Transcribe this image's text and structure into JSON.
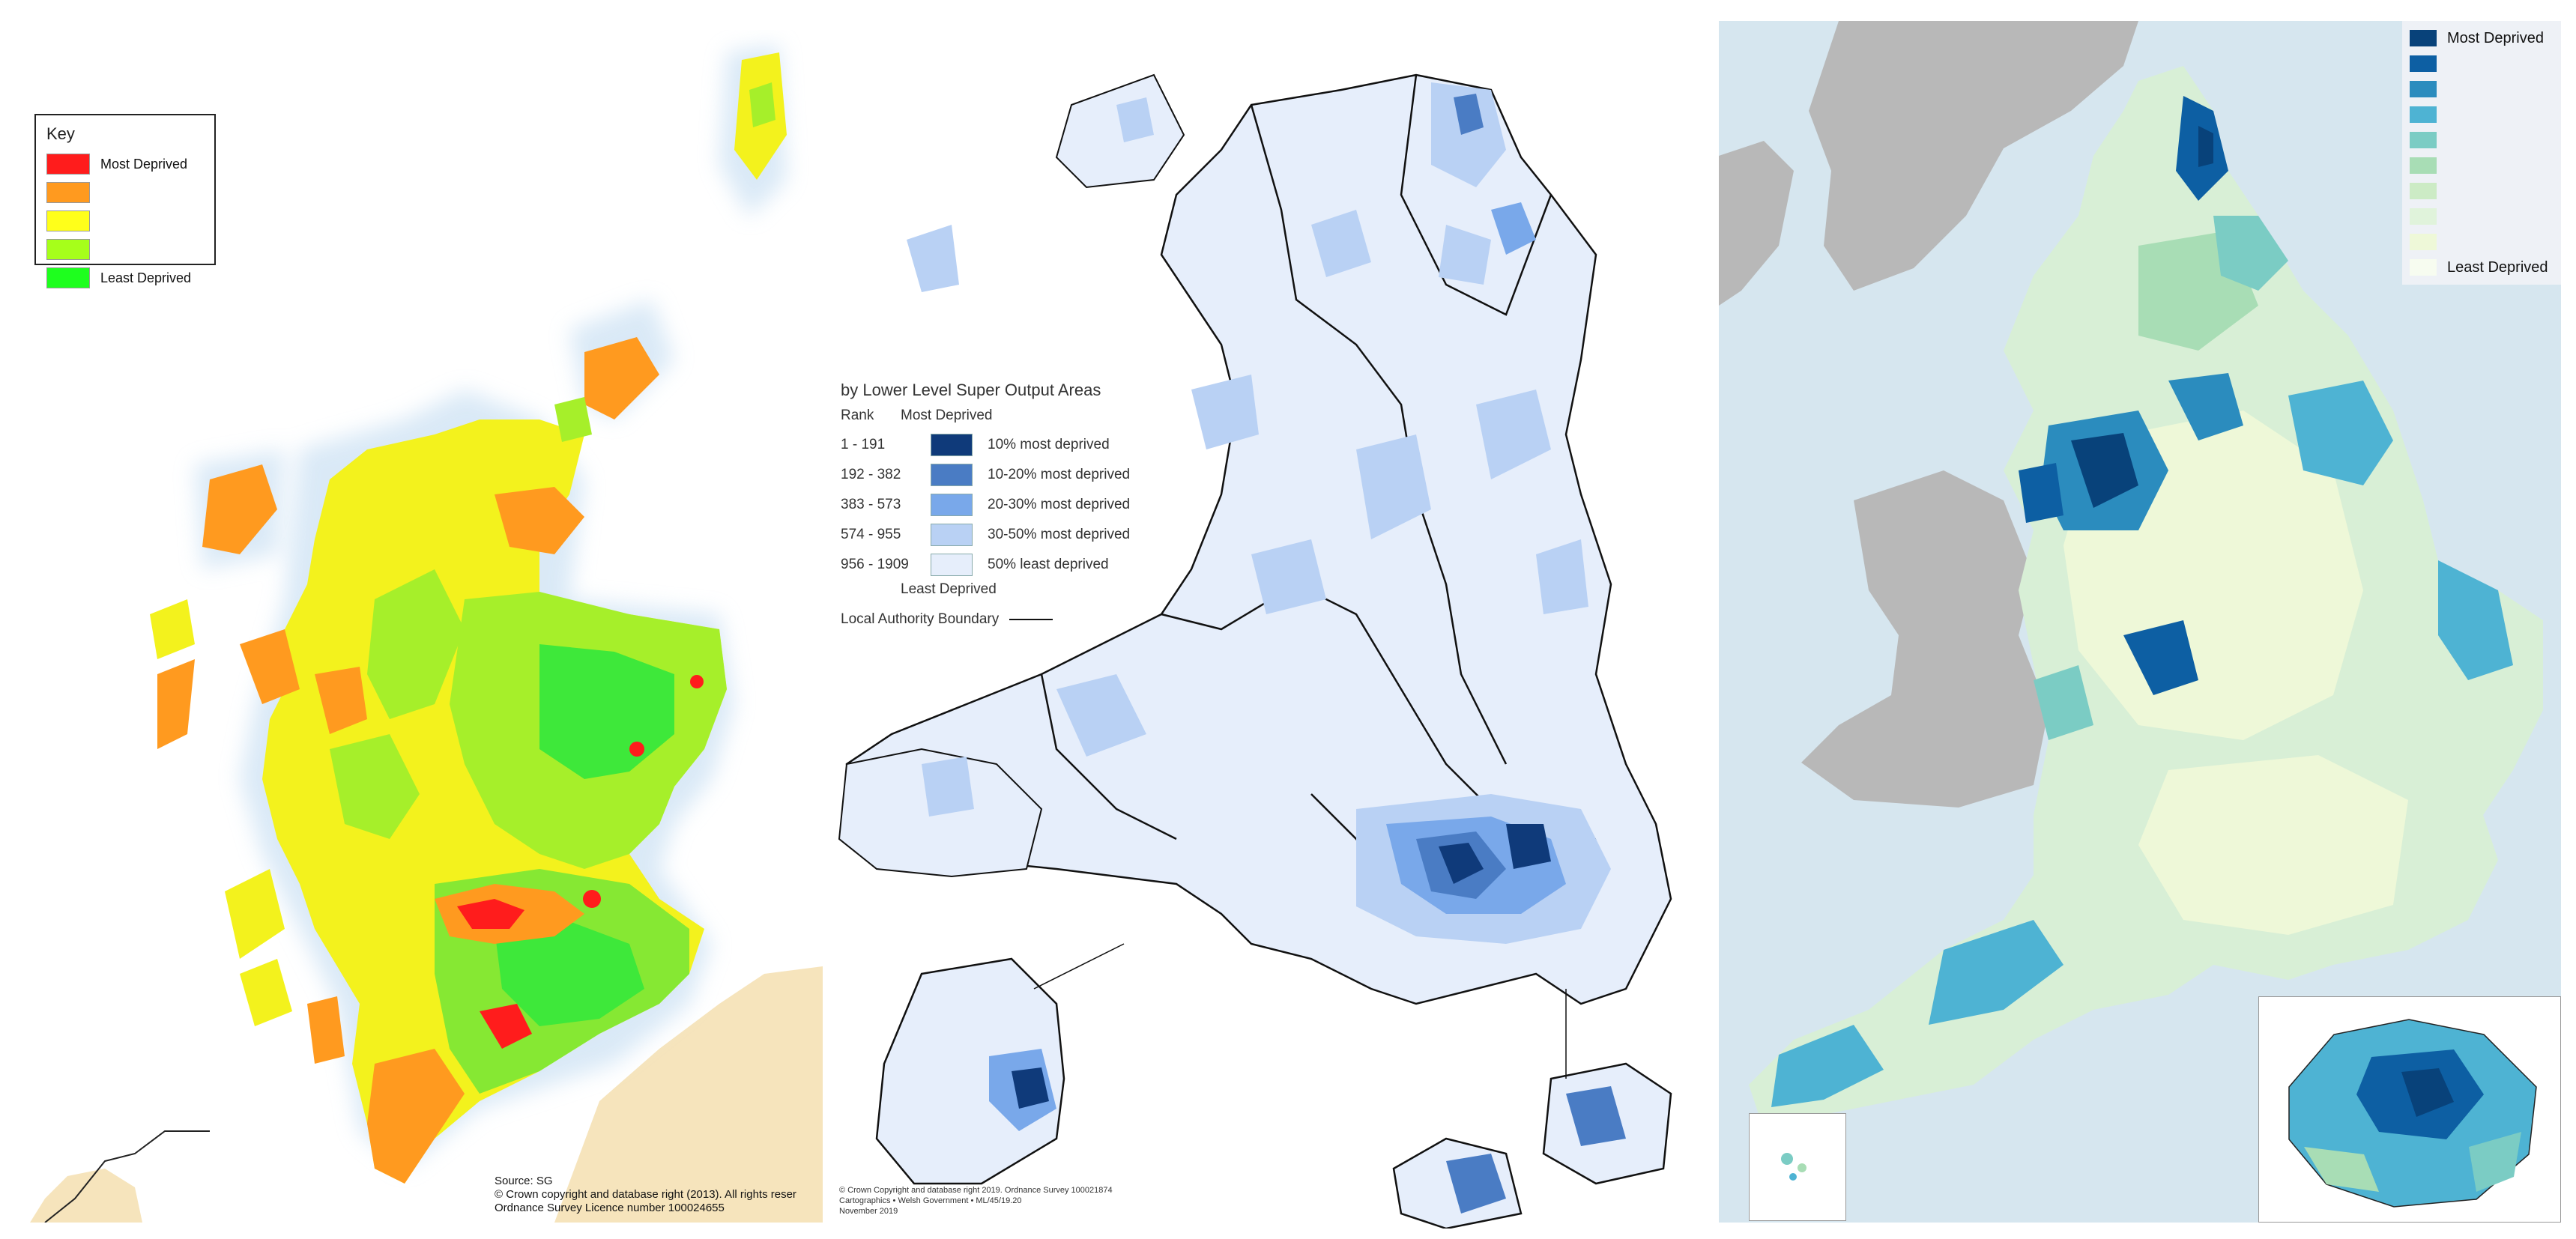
{
  "scotland": {
    "key_title": "Key",
    "legend": [
      {
        "label": "Most Deprived",
        "color": "#ff1c1c"
      },
      {
        "label": "",
        "color": "#ff9a1f"
      },
      {
        "label": "",
        "color": "#ffff1a"
      },
      {
        "label": "",
        "color": "#a6ff1a"
      },
      {
        "label": "Least Deprived",
        "color": "#1eff1e"
      }
    ],
    "source_lines": [
      "Source: SG",
      "© Crown copyright and database right (2013). All rights reser",
      "Ordnance Survey Licence number 100024655"
    ]
  },
  "wales": {
    "legend_title": "by Lower Level Super Output Areas",
    "col_rank": "Rank",
    "col_most": "Most Deprived",
    "rows": [
      {
        "rank": "1 - 191",
        "label": "10% most deprived",
        "color": "#0f3a7a"
      },
      {
        "rank": "192 - 382",
        "label": "10-20% most deprived",
        "color": "#4a7cc4"
      },
      {
        "rank": "383 - 573",
        "label": "20-30% most deprived",
        "color": "#79a8ea"
      },
      {
        "rank": "574 - 955",
        "label": "30-50% most deprived",
        "color": "#b9d1f4"
      },
      {
        "rank": "956 - 1909",
        "label": "50% least deprived",
        "color": "#e6eefb"
      }
    ],
    "least_label": "Least Deprived",
    "boundary_label": "Local Authority Boundary",
    "credit_lines": [
      "© Crown Copyright and database right 2019. Ordnance Survey 100021874",
      "Cartographics • Welsh Government • ML/45/19.20",
      "November 2019"
    ]
  },
  "england": {
    "legend": [
      {
        "label": "Most Deprived",
        "color": "#08427a"
      },
      {
        "label": "",
        "color": "#0d5fa3"
      },
      {
        "label": "",
        "color": "#2b8cbe"
      },
      {
        "label": "",
        "color": "#4eb3d3"
      },
      {
        "label": "",
        "color": "#7bccc4"
      },
      {
        "label": "",
        "color": "#a8ddb5"
      },
      {
        "label": "",
        "color": "#ccebc5"
      },
      {
        "label": "",
        "color": "#e0f3db"
      },
      {
        "label": "",
        "color": "#eef8d8"
      },
      {
        "label": "Least Deprived",
        "color": "#f7fcf0"
      }
    ]
  }
}
